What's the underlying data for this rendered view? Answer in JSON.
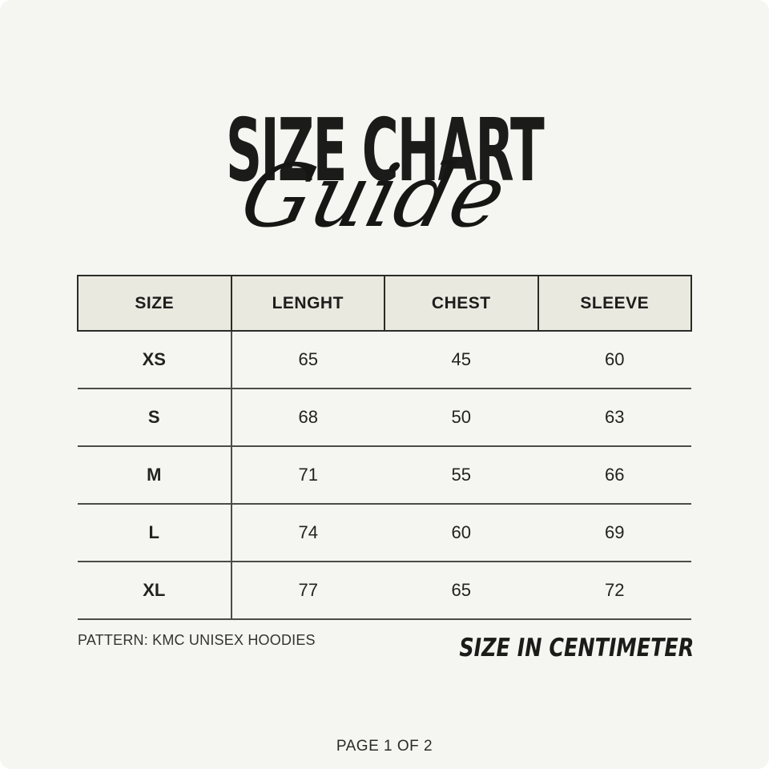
{
  "page": {
    "title": "SIZE CHART",
    "subtitle": "Guide",
    "pattern_note": "PATTERN: KMC UNISEX HOODIES",
    "unit_note": "SIZE IN CENTIMETER",
    "page_indicator": "PAGE 1 OF 2"
  },
  "colors": {
    "background": "#f5f5f1",
    "header_fill": "#e9e9e0",
    "header_border": "#2b2b28",
    "row_line": "#4b4b48",
    "text": "#1d1d1b"
  },
  "table": {
    "headers": [
      "SIZE",
      "LENGHT",
      "CHEST",
      "SLEEVE"
    ],
    "rows": [
      {
        "size": "XS",
        "length": "65",
        "chest": "45",
        "sleeve": "60"
      },
      {
        "size": "S",
        "length": "68",
        "chest": "50",
        "sleeve": "63"
      },
      {
        "size": "M",
        "length": "71",
        "chest": "55",
        "sleeve": "66"
      },
      {
        "size": "L",
        "length": "74",
        "chest": "60",
        "sleeve": "69"
      },
      {
        "size": "XL",
        "length": "77",
        "chest": "65",
        "sleeve": "72"
      }
    ]
  }
}
